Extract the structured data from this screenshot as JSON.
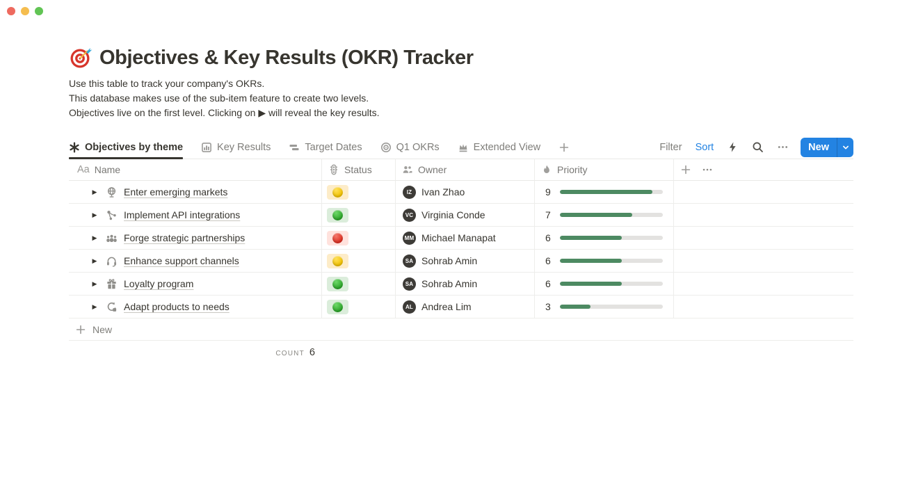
{
  "window": {
    "controls": [
      {
        "name": "close",
        "color": "#ee6a5f"
      },
      {
        "name": "minimize",
        "color": "#f5bd4f"
      },
      {
        "name": "zoom",
        "color": "#61c454"
      }
    ]
  },
  "page": {
    "icon_emoji": "🎯",
    "title": "Objectives & Key Results (OKR) Tracker",
    "description_lines": [
      "Use this table to track your company's OKRs.",
      "This database makes use of the sub-item feature to create two levels.",
      "Objectives live on the first level. Clicking on ▶ will reveal the key results."
    ]
  },
  "views": {
    "tabs": [
      {
        "label": "Objectives by theme",
        "icon": "asterisk-icon",
        "active": true
      },
      {
        "label": "Key Results",
        "icon": "chart-icon",
        "active": false
      },
      {
        "label": "Target Dates",
        "icon": "timeline-icon",
        "active": false
      },
      {
        "label": "Q1 OKRs",
        "icon": "target-icon",
        "active": false
      },
      {
        "label": "Extended View",
        "icon": "crown-icon",
        "active": false
      }
    ]
  },
  "toolbar": {
    "filter_label": "Filter",
    "sort_label": "Sort",
    "new_label": "New",
    "accent": "#2383e2"
  },
  "table": {
    "columns": [
      {
        "label": "Name",
        "icon": "text-icon"
      },
      {
        "label": "Status",
        "icon": "traffic-light-icon"
      },
      {
        "label": "Owner",
        "icon": "people-icon"
      },
      {
        "label": "Priority",
        "icon": "flame-icon"
      }
    ],
    "rows": [
      {
        "name": "Enter emerging markets",
        "icon": "globe-icon",
        "status": "yellow",
        "owner": "Ivan Zhao",
        "priority": 9
      },
      {
        "name": "Implement API integrations",
        "icon": "nodes-icon",
        "status": "green",
        "owner": "Virginia Conde",
        "priority": 7
      },
      {
        "name": "Forge strategic partnerships",
        "icon": "people-group-icon",
        "status": "red",
        "owner": "Michael Manapat",
        "priority": 6
      },
      {
        "name": "Enhance support channels",
        "icon": "headset-icon",
        "status": "yellow",
        "owner": "Sohrab Amin",
        "priority": 6
      },
      {
        "name": "Loyalty program",
        "icon": "gift-icon",
        "status": "green",
        "owner": "Sohrab Amin",
        "priority": 6
      },
      {
        "name": "Adapt products to needs",
        "icon": "sync-icon",
        "status": "green",
        "owner": "Andrea Lim",
        "priority": 3
      }
    ],
    "status_colors": {
      "yellow": {
        "bg": "#fdecc8",
        "dot": "#f2c200",
        "dot_light": "#ffe05a"
      },
      "green": {
        "bg": "#dbeddb",
        "dot": "#2aa528",
        "dot_light": "#6fd96a"
      },
      "red": {
        "bg": "#ffe2dd",
        "dot": "#dd2e20",
        "dot_light": "#f4796d"
      }
    },
    "priority": {
      "max": 10,
      "bar_color": "#4d8a62",
      "track_color": "#e3e2e0"
    },
    "new_row_label": "New",
    "footer": {
      "count_label": "COUNT",
      "count_value": "6"
    }
  }
}
